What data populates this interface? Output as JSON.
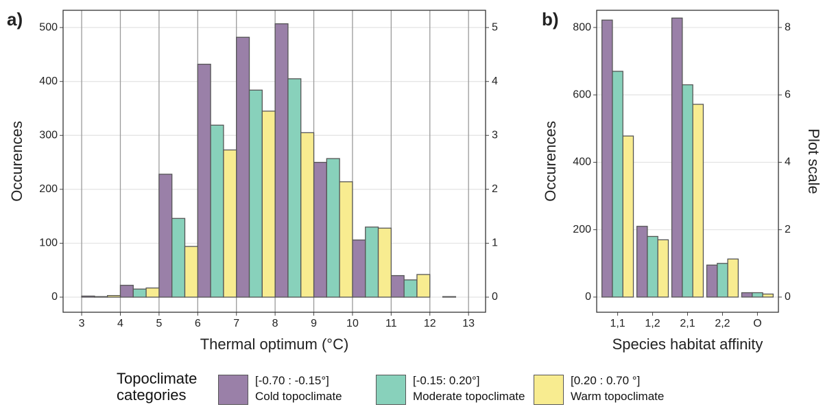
{
  "charts": [
    {
      "type": "histogram",
      "panel_label": "a)",
      "xlabel": "Thermal optimum (°C)",
      "ylabel": "Occurences",
      "bins": [
        3,
        4,
        5,
        6,
        7,
        8,
        9,
        10,
        11,
        12,
        13
      ],
      "series": [
        {
          "color": "#9a80a8",
          "values": [
            2,
            22,
            228,
            432,
            482,
            507,
            250,
            106,
            40,
            0
          ]
        },
        {
          "color": "#88d1bb",
          "values": [
            1,
            15,
            146,
            319,
            384,
            405,
            257,
            130,
            32,
            1
          ]
        },
        {
          "color": "#f8ec90",
          "values": [
            3,
            17,
            94,
            273,
            345,
            305,
            214,
            128,
            42,
            0
          ]
        }
      ],
      "xlim": [
        2.52,
        13.44
      ],
      "xticks": [
        3,
        4,
        5,
        6,
        7,
        8,
        9,
        10,
        11,
        12,
        13
      ],
      "ylim": [
        -28,
        532
      ],
      "yticks": [
        0,
        100,
        200,
        300,
        400,
        500
      ],
      "y2lim": [
        -0.28,
        5.32
      ],
      "y2ticks": [
        0,
        1,
        2,
        3,
        4,
        5
      ],
      "grid": true,
      "xgrid": true
    },
    {
      "type": "bar",
      "panel_label": "b)",
      "xlabel": "Species habitat affinity",
      "ylabel": "Occurences",
      "y2label": "Plot scale",
      "categories": [
        "1,1",
        "1,2",
        "2,1",
        "2,2",
        "O"
      ],
      "series": [
        {
          "color": "#9a80a8",
          "values": [
            822,
            210,
            828,
            95,
            13
          ]
        },
        {
          "color": "#88d1bb",
          "values": [
            670,
            180,
            630,
            100,
            13
          ]
        },
        {
          "color": "#f8ec90",
          "values": [
            478,
            170,
            572,
            113,
            9
          ]
        }
      ],
      "ylim": [
        -45,
        851
      ],
      "yticks": [
        0,
        200,
        400,
        600,
        800
      ],
      "y2lim": [
        -0.45,
        8.51
      ],
      "y2ticks": [
        0,
        2,
        4,
        6,
        8
      ],
      "grid": true
    }
  ],
  "legend": {
    "title": "Topoclimate categories",
    "entries": [
      {
        "name": "[-0.70 : -0.15°]",
        "description": "Cold topoclimate",
        "color": "#9a80a8"
      },
      {
        "name": "[-0.15: 0.20°]",
        "description": "Moderate topoclimate",
        "color": "#88d1bb"
      },
      {
        "name": "[0.20 : 0.70 °]",
        "description": "Warm topoclimate",
        "color": "#f8ec90"
      }
    ]
  }
}
